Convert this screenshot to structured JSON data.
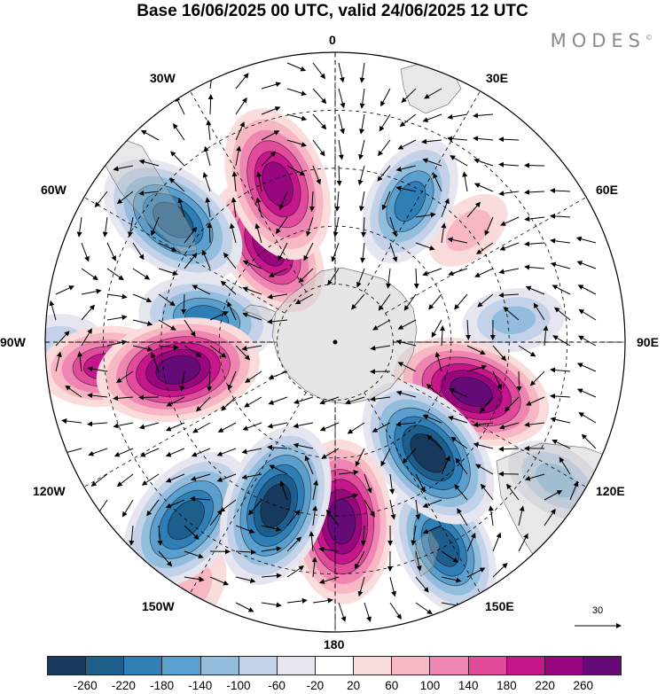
{
  "title": "Base 16/06/2025 00 UTC, valid 24/06/2025 12 UTC",
  "logo": {
    "text": "MODES",
    "mark": "©"
  },
  "map": {
    "projection": "south-polar-stereographic",
    "longitude_labels": [
      "0",
      "30E",
      "60E",
      "90E",
      "120E",
      "150E",
      "180",
      "150W",
      "120W",
      "90W",
      "60W",
      "30W"
    ],
    "landmass": "Antarctica",
    "anomaly_centers": [
      {
        "lon_deg": -20,
        "r": 0.58,
        "value": 230
      },
      {
        "lon_deg": -35,
        "r": 0.4,
        "value": 200
      },
      {
        "lon_deg": 28,
        "r": 0.55,
        "value": -170
      },
      {
        "lon_deg": 50,
        "r": 0.6,
        "value": 60
      },
      {
        "lon_deg": 83,
        "r": 0.62,
        "value": -90
      },
      {
        "lon_deg": 110,
        "r": 0.5,
        "value": 240
      },
      {
        "lon_deg": 140,
        "r": 0.5,
        "value": -250
      },
      {
        "lon_deg": 152,
        "r": 0.8,
        "value": -200
      },
      {
        "lon_deg": 122,
        "r": 0.9,
        "value": -100
      },
      {
        "lon_deg": 178,
        "r": 0.62,
        "value": 250
      },
      {
        "lon_deg": -160,
        "r": 0.6,
        "value": -250
      },
      {
        "lon_deg": -140,
        "r": 0.8,
        "value": -230
      },
      {
        "lon_deg": -100,
        "r": 0.55,
        "value": 250
      },
      {
        "lon_deg": -96,
        "r": 0.8,
        "value": 160
      },
      {
        "lon_deg": -80,
        "r": 0.45,
        "value": -180
      },
      {
        "lon_deg": -53,
        "r": 0.7,
        "value": -230
      },
      {
        "lon_deg": -90,
        "r": 0.95,
        "value": -60
      },
      {
        "lon_deg": -150,
        "r": 0.98,
        "value": 60
      }
    ]
  },
  "reference_vector": {
    "value": "30"
  },
  "colorbar": {
    "colors": [
      "#173a5c",
      "#1d5e8d",
      "#2f7eb6",
      "#5a9fcd",
      "#92bddd",
      "#c3d2e8",
      "#e6e6f1",
      "#ffffff",
      "#fbdcdc",
      "#f7b8c4",
      "#ef86b2",
      "#e14b9c",
      "#c5168b",
      "#99077f",
      "#640b78"
    ],
    "tick_labels": [
      "-260",
      "-220",
      "-180",
      "-140",
      "-100",
      "-60",
      "-20",
      "20",
      "60",
      "100",
      "140",
      "180",
      "220",
      "260"
    ],
    "levels": [
      -260,
      -220,
      -180,
      -140,
      -100,
      -60,
      -20,
      20,
      60,
      100,
      140,
      180,
      220,
      260
    ]
  }
}
